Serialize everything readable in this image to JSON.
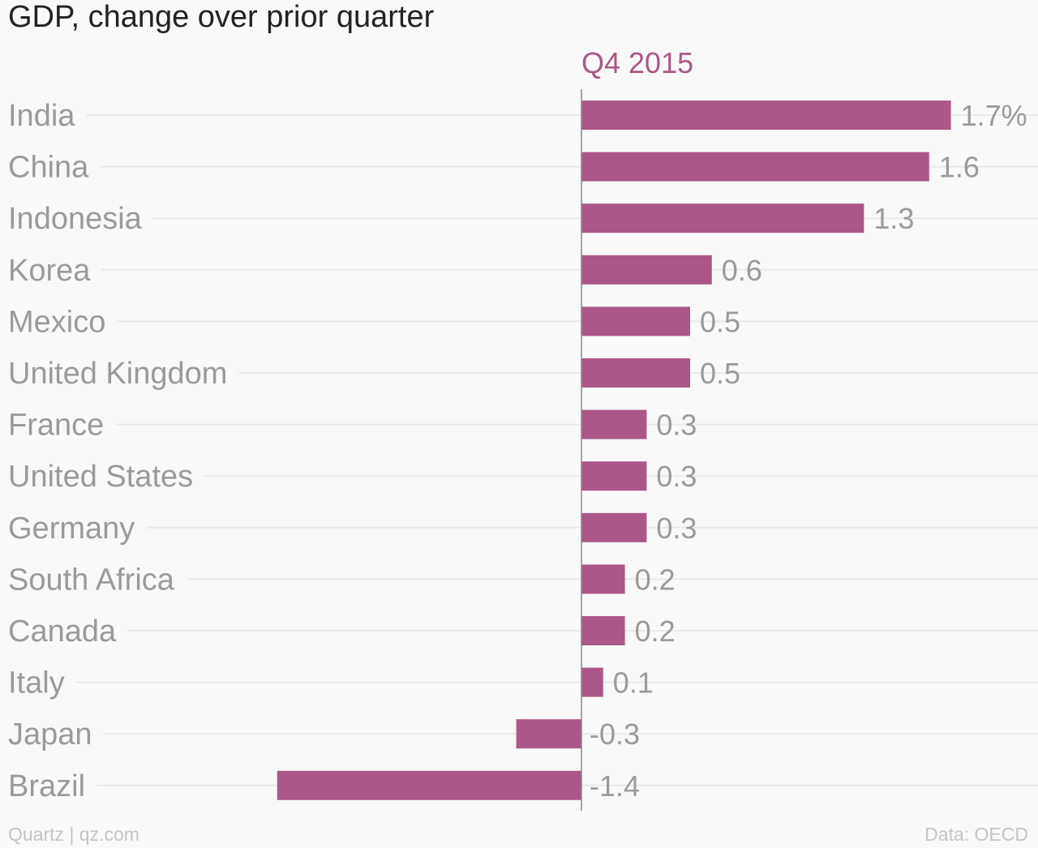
{
  "colors": {
    "bar": "#ab5787",
    "category_label": "#9a9a9a",
    "value_label": "#9a9a9a",
    "series_label": "#ab5787",
    "gridline": "#e9e9e9",
    "zero_axis": "#888888",
    "background": "#f9f9f9"
  },
  "footer": {
    "credit": "Quartz | qz.com",
    "source": "Data: OECD"
  },
  "chart_data": {
    "type": "bar",
    "orientation": "horizontal",
    "title": "GDP, change over prior quarter",
    "series": [
      {
        "name": "Q4 2015",
        "values": [
          1.7,
          1.6,
          1.3,
          0.6,
          0.5,
          0.5,
          0.3,
          0.3,
          0.3,
          0.2,
          0.2,
          0.1,
          -0.3,
          -1.4
        ]
      }
    ],
    "categories": [
      "India",
      "China",
      "Indonesia",
      "Korea",
      "Mexico",
      "United Kingdom",
      "France",
      "United States",
      "Germany",
      "South Africa",
      "Canada",
      "Italy",
      "Japan",
      "Brazil"
    ],
    "value_labels": [
      "1.7%",
      "1.6",
      "1.3",
      "0.6",
      "0.5",
      "0.5",
      "0.3",
      "0.3",
      "0.3",
      "0.2",
      "0.2",
      "0.1",
      "-0.3",
      "-1.4"
    ],
    "xlim": [
      -1.5,
      2.1
    ],
    "grid": true,
    "legend": "none"
  }
}
